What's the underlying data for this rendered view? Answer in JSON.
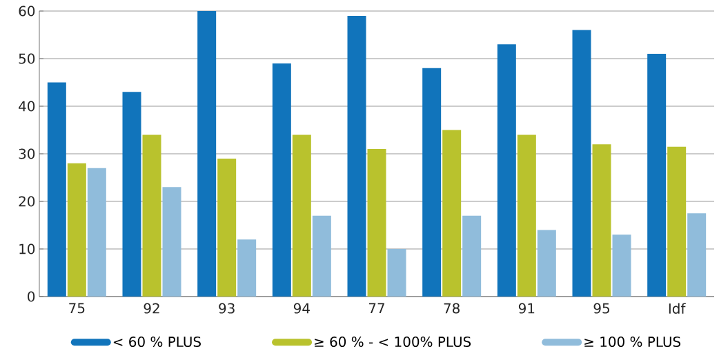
{
  "chart_data": {
    "type": "bar",
    "categories": [
      "75",
      "92",
      "93",
      "94",
      "77",
      "78",
      "91",
      "95",
      "Idf"
    ],
    "series": [
      {
        "name": "< 60 % PLUS",
        "color": "#1174bb",
        "values": [
          45,
          43,
          60,
          49,
          59,
          48,
          53,
          56,
          51
        ]
      },
      {
        "name": "≥ 60 % - < 100% PLUS",
        "color": "#b9c22d",
        "values": [
          28,
          34,
          29,
          34,
          31,
          35,
          34,
          32,
          31.5
        ]
      },
      {
        "name": "≥ 100 % PLUS",
        "color": "#90bcdb",
        "values": [
          27,
          23,
          12,
          17,
          10,
          17,
          14,
          13,
          17.5
        ]
      }
    ],
    "ylim": [
      0,
      60
    ],
    "yticks": [
      0,
      10,
      20,
      30,
      40,
      50,
      60
    ],
    "grid": "y",
    "legend": "bottom"
  }
}
